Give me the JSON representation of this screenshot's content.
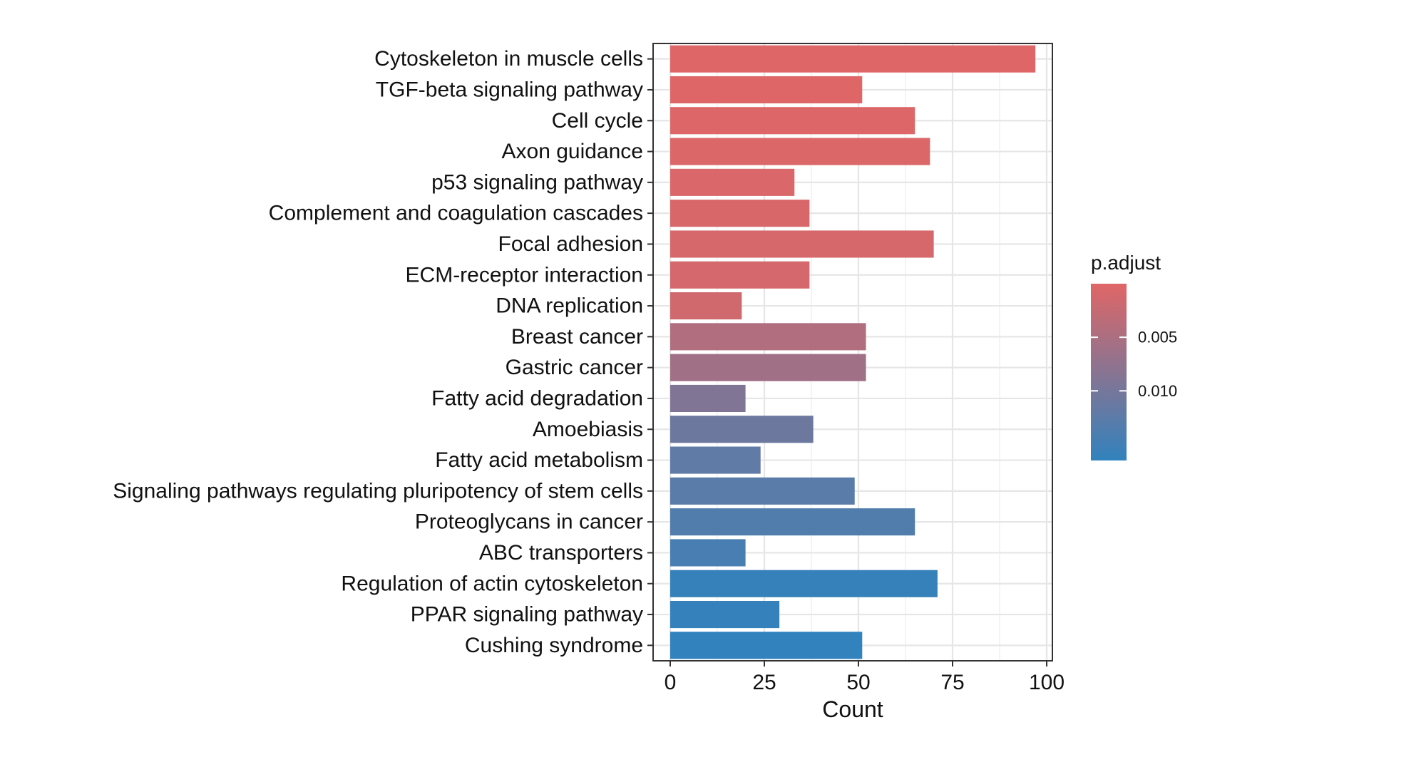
{
  "chart_data": {
    "type": "bar",
    "orientation": "horizontal",
    "xlabel": "Count",
    "ylabel": "",
    "title": "",
    "xlim": [
      0,
      101
    ],
    "x_ticks": [
      0,
      25,
      50,
      75,
      100
    ],
    "grid": true,
    "categories": [
      "Cytoskeleton in muscle cells",
      "TGF-beta signaling pathway",
      "Cell cycle",
      "Axon guidance",
      "p53 signaling pathway",
      "Complement and coagulation cascades",
      "Focal adhesion",
      "ECM-receptor interaction",
      "DNA replication",
      "Breast cancer",
      "Gastric cancer",
      "Fatty acid degradation",
      "Amoebiasis",
      "Fatty acid metabolism",
      "Signaling pathways regulating pluripotency of stem cells",
      "Proteoglycans in cancer",
      "ABC transporters",
      "Regulation of actin cytoskeleton",
      "PPAR signaling pathway",
      "Cushing syndrome"
    ],
    "values": [
      97,
      51,
      65,
      69,
      33,
      37,
      70,
      37,
      19,
      52,
      52,
      20,
      38,
      24,
      49,
      65,
      20,
      71,
      29,
      51
    ],
    "p_adjust": [
      0.0001,
      0.0002,
      0.0003,
      0.0004,
      0.0006,
      0.0008,
      0.0009,
      0.0011,
      0.0016,
      0.0045,
      0.006,
      0.009,
      0.0108,
      0.0122,
      0.0127,
      0.0135,
      0.0143,
      0.016,
      0.0162,
      0.0165
    ],
    "legend": {
      "title": "p.adjust",
      "placement": "right",
      "ticks": [
        {
          "label": "0.005",
          "value": 0.005
        },
        {
          "label": "0.010",
          "value": 0.01
        }
      ],
      "range": [
        0.0,
        0.0165
      ],
      "color_low": "#E06666",
      "color_high": "#3182BD"
    }
  }
}
